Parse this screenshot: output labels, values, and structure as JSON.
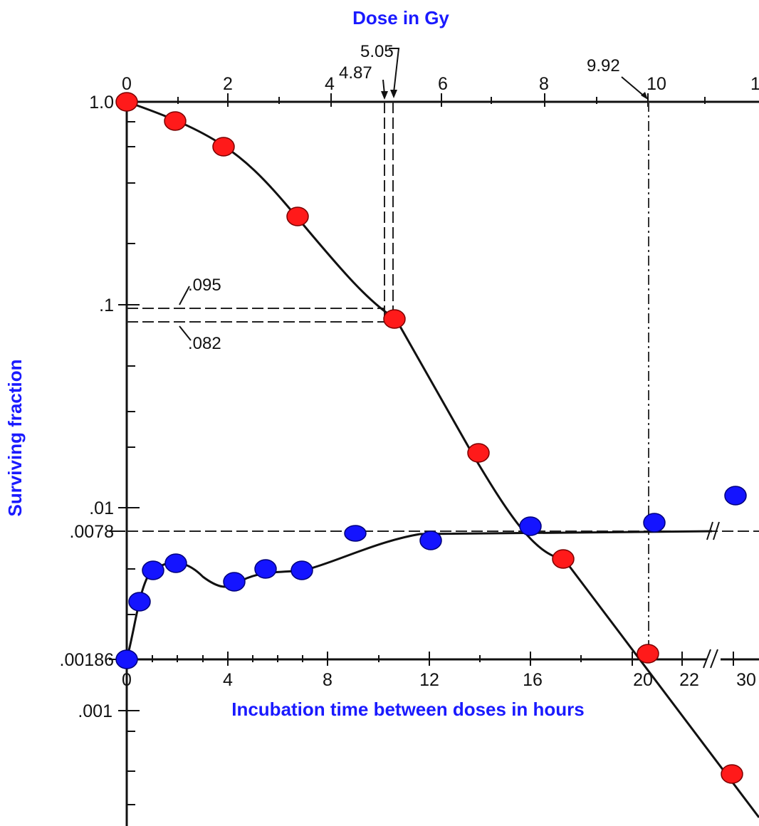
{
  "chart_data": [
    {
      "type": "line",
      "name": "dose-survival",
      "title": "Dose in Gy",
      "ylabel": "Surviving fraction",
      "scale_y": "log",
      "xlim": [
        0,
        11
      ],
      "ylim": [
        0.0005,
        1.0
      ],
      "x_ticks": [
        "0",
        "2",
        "4",
        "6",
        "8",
        "10",
        "1"
      ],
      "y_ticks": [
        "1.0",
        ".1",
        ".01",
        ".001"
      ],
      "series": [
        {
          "marker_color": "#ff1a1a",
          "x": [
            0.0,
            0.95,
            1.9,
            3.4,
            5.2,
            7.0,
            8.6,
            10.0,
            11.0
          ],
          "y": [
            1.0,
            0.86,
            0.67,
            0.28,
            0.083,
            0.018,
            0.0056,
            0.00186,
            0.00037
          ]
        }
      ],
      "annotations": [
        "5.05",
        "4.87",
        "9.92",
        ".095",
        ".082"
      ]
    },
    {
      "type": "line",
      "name": "split-dose-recovery",
      "xlabel": "Incubation time between doses in hours",
      "ylabel": "Surviving fraction",
      "x_ticks": [
        "0",
        "4",
        "8",
        "12",
        "16",
        "20",
        "22",
        "30"
      ],
      "y_ticks": [
        ".0078",
        ".00186"
      ],
      "series": [
        {
          "marker_color": "#1414ff",
          "x": [
            0,
            0.5,
            1,
            2,
            4,
            5.5,
            7,
            9,
            12,
            16,
            21,
            30
          ],
          "y": [
            0.00186,
            0.0031,
            0.0045,
            0.0049,
            0.0039,
            0.0045,
            0.0043,
            0.0075,
            0.007,
            0.0081,
            0.0084,
            0.0114
          ]
        }
      ],
      "annotations": [
        ".0078",
        ".00186"
      ]
    }
  ]
}
